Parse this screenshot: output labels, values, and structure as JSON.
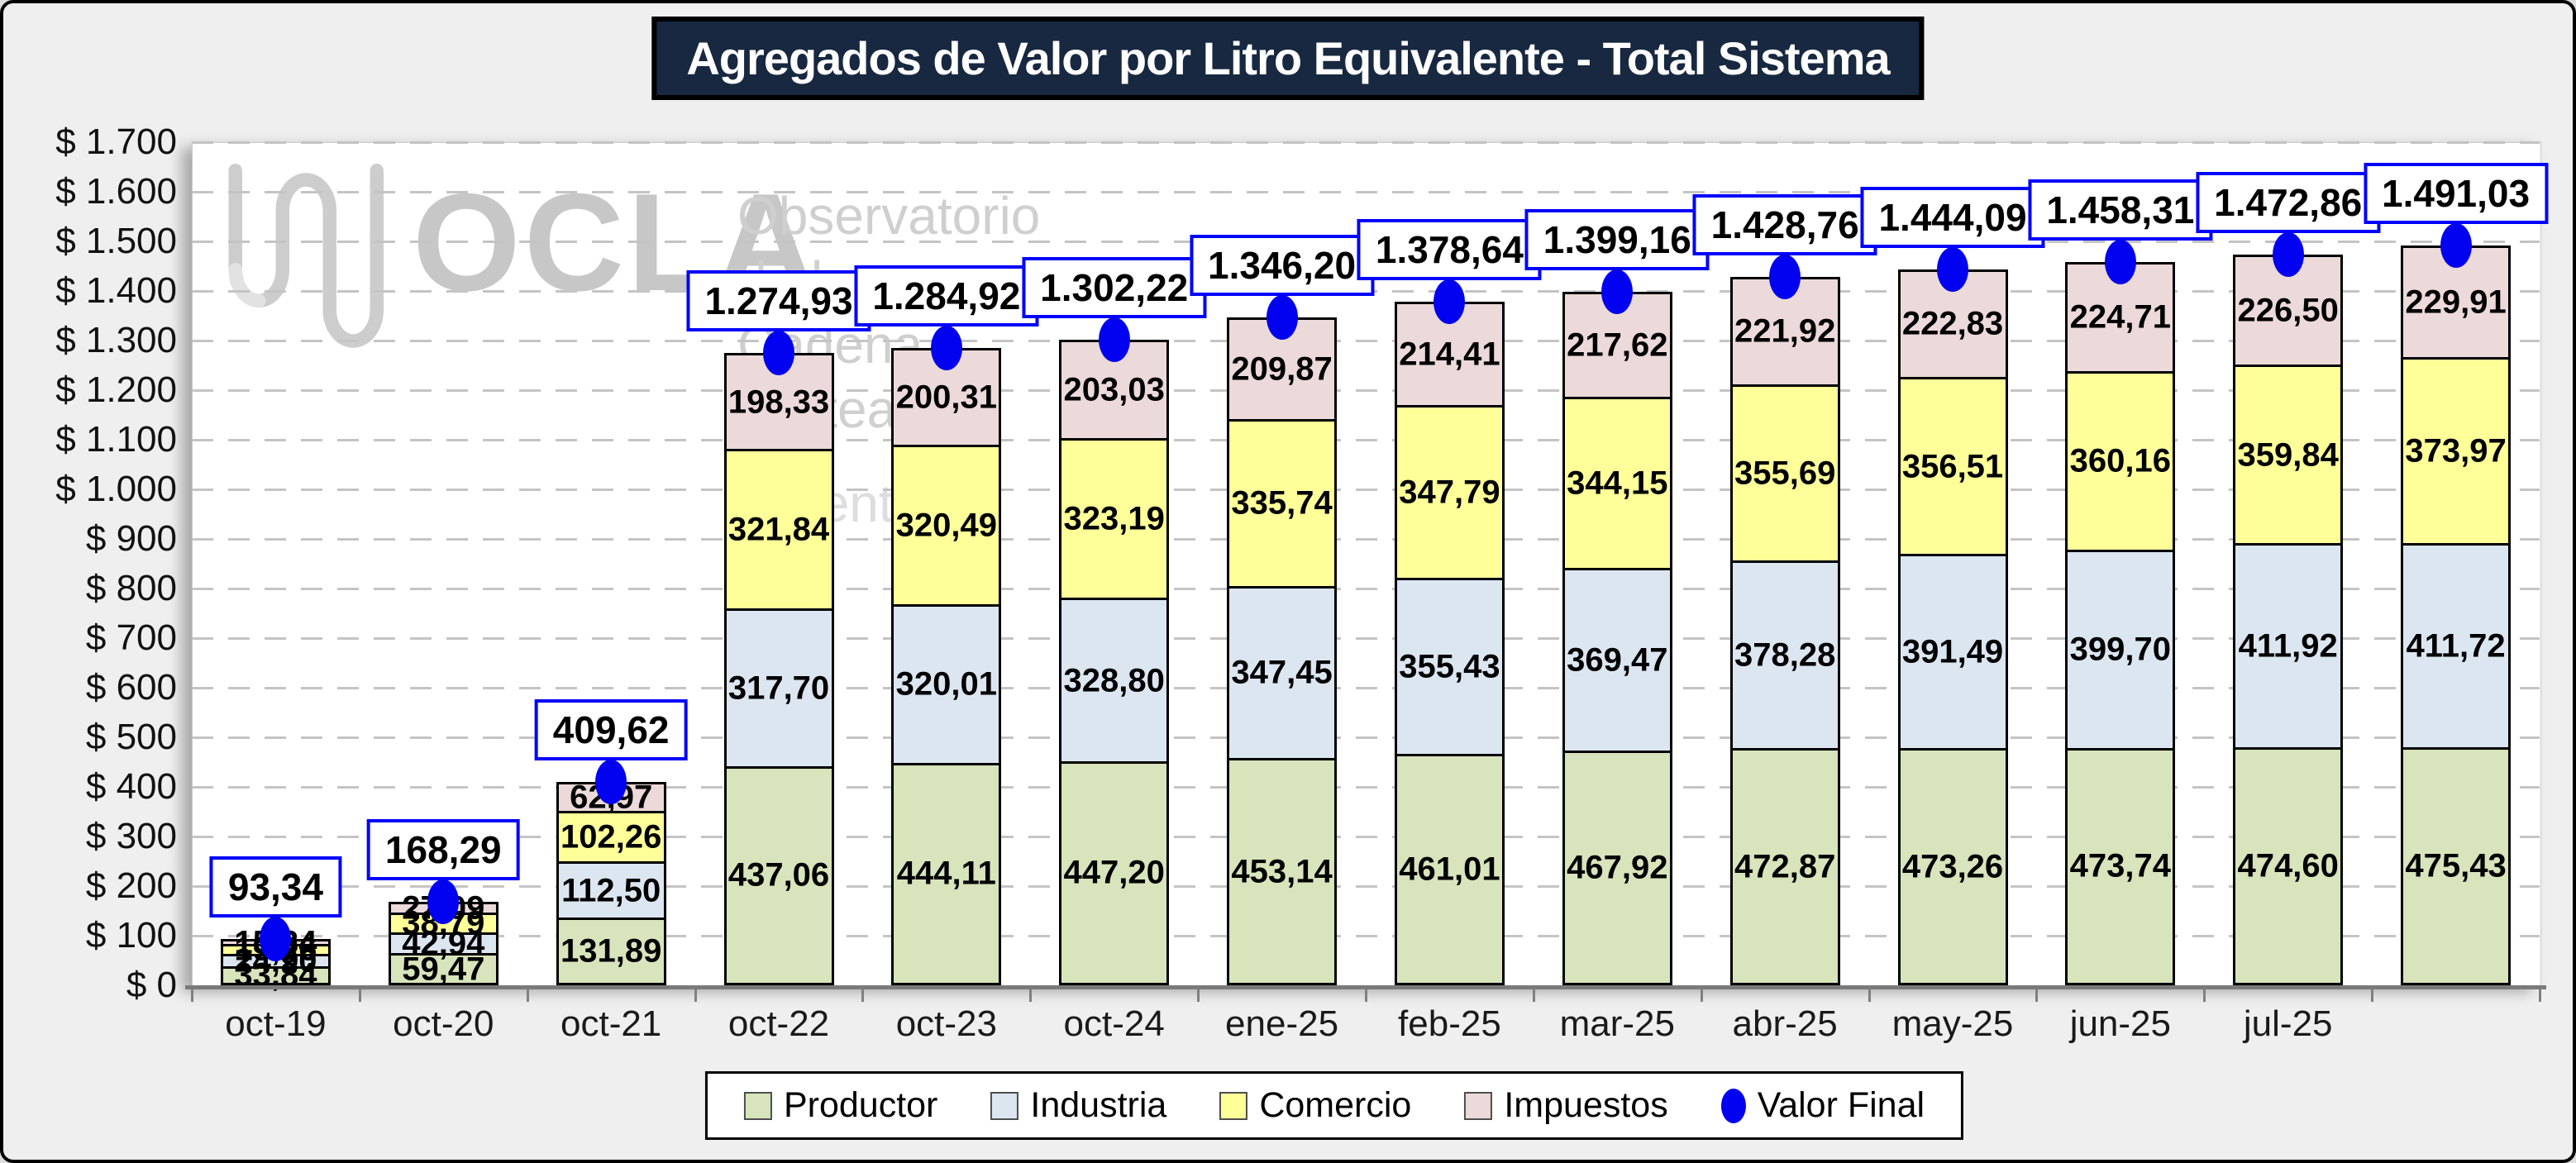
{
  "title": "Agregados de Valor por Litro Equivalente - Total Sistema",
  "watermark": {
    "brand": "OCLA",
    "line1": "Observatorio",
    "line2": "de la Cadena Láctea",
    "line3": "Argentina"
  },
  "colors": {
    "title_bg": "#172840",
    "productor": "#d7e4bc",
    "industria": "#dce6f1",
    "comercio": "#ffff99",
    "impuestos": "#ecd9d9",
    "valor_final": "#0202f0",
    "value_box_border": "#0000ff"
  },
  "chart_data": {
    "type": "bar",
    "stacked": true,
    "title": "Agregados de Valor por Litro Equivalente - Total Sistema",
    "xlabel": "",
    "ylabel": "",
    "ylim": [
      0,
      1700
    ],
    "y_tick_step": 100,
    "grid": true,
    "legend_position": "bottom",
    "y_ticks": [
      "$ 0",
      "$ 100",
      "$ 200",
      "$ 300",
      "$ 400",
      "$ 500",
      "$ 600",
      "$ 700",
      "$ 800",
      "$ 900",
      "$ 1.000",
      "$ 1.100",
      "$ 1.200",
      "$ 1.300",
      "$ 1.400",
      "$ 1.500",
      "$ 1.600",
      "$ 1.700"
    ],
    "categories": [
      "oct-19",
      "oct-20",
      "oct-21",
      "oct-22",
      "oct-23",
      "oct-24",
      "ene-25",
      "feb-25",
      "mar-25",
      "abr-25",
      "may-25",
      "jun-25",
      "jul-25",
      ""
    ],
    "series": [
      {
        "name": "Productor",
        "color": "#d7e4bc",
        "values": [
          33.84,
          59.47,
          131.89,
          437.06,
          444.11,
          447.2,
          453.14,
          461.01,
          467.92,
          472.87,
          473.26,
          473.74,
          474.6,
          475.43
        ],
        "labels": [
          "33,84",
          "59,47",
          "131,89",
          "437,06",
          "444,11",
          "447,20",
          "453,14",
          "461,01",
          "467,92",
          "472,87",
          "473,26",
          "473,74",
          "474,60",
          "475,43"
        ]
      },
      {
        "name": "Industria",
        "color": "#dce6f1",
        "values": [
          24.9,
          42.94,
          112.5,
          317.7,
          320.01,
          328.8,
          347.45,
          355.43,
          369.47,
          378.28,
          391.49,
          399.7,
          411.92,
          411.72
        ],
        "labels": [
          "24,90",
          "42,94",
          "112,50",
          "317,70",
          "320,01",
          "328,80",
          "347,45",
          "355,43",
          "369,47",
          "378,28",
          "391,49",
          "399,70",
          "411,92",
          "411,72"
        ]
      },
      {
        "name": "Comercio",
        "color": "#ffff99",
        "values": [
          19.26,
          38.79,
          102.26,
          321.84,
          320.49,
          323.19,
          335.74,
          347.79,
          344.15,
          355.69,
          356.51,
          360.16,
          359.84,
          373.97
        ],
        "labels": [
          "19,26",
          "38,79",
          "102,26",
          "321,84",
          "320,49",
          "323,19",
          "335,74",
          "347,79",
          "344,15",
          "355,69",
          "356,51",
          "360,16",
          "359,84",
          "373,97"
        ]
      },
      {
        "name": "Impuestos",
        "color": "#ecd9d9",
        "values": [
          15.34,
          27.09,
          62.97,
          198.33,
          200.31,
          203.03,
          209.87,
          214.41,
          217.62,
          221.92,
          222.83,
          224.71,
          226.5,
          229.91
        ],
        "labels": [
          "15,34",
          "27,09",
          "62,97",
          "198,33",
          "200,31",
          "203,03",
          "209,87",
          "214,41",
          "217,62",
          "221,92",
          "222,83",
          "224,71",
          "226,50",
          "229,91"
        ]
      }
    ],
    "totals": {
      "name": "Valor Final",
      "color": "#0202f0",
      "values": [
        93.34,
        168.29,
        409.62,
        1274.93,
        1284.92,
        1302.22,
        1346.2,
        1378.64,
        1399.16,
        1428.76,
        1444.09,
        1458.31,
        1472.86,
        1491.03
      ],
      "labels": [
        "93,34",
        "168,29",
        "409,62",
        "1.274,93",
        "1.284,92",
        "1.302,22",
        "1.346,20",
        "1.378,64",
        "1.399,16",
        "1.428,76",
        "1.444,09",
        "1.458,31",
        "1.472,86",
        "1.491,03"
      ]
    }
  }
}
